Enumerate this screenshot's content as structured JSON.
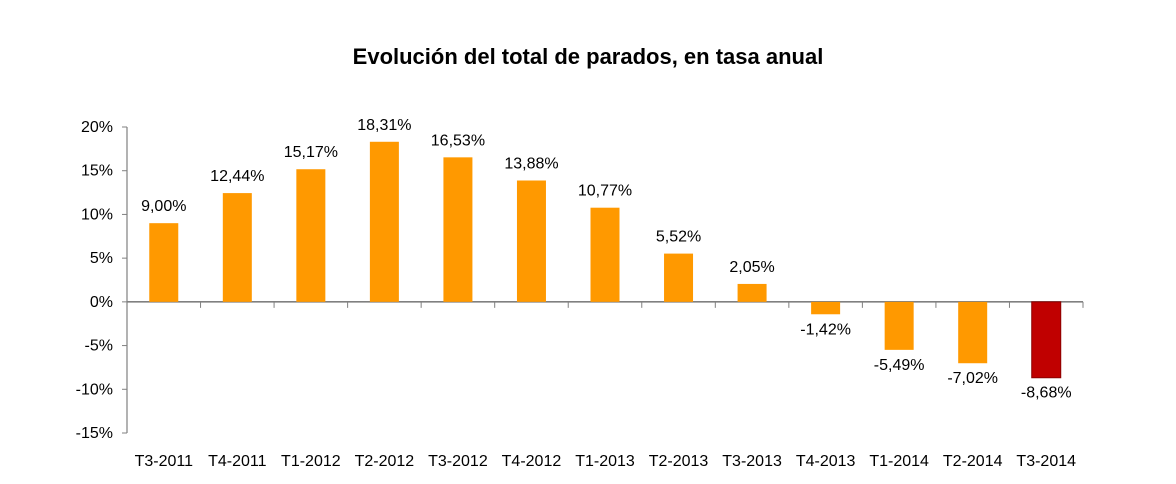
{
  "chart_data": {
    "type": "bar",
    "title": "Evolución del total de parados, en tasa anual",
    "xlabel": "",
    "ylabel": "",
    "ylim": [
      -15,
      20
    ],
    "yticks": [
      20,
      15,
      10,
      5,
      0,
      -5,
      -10,
      -15
    ],
    "ytick_labels": [
      "20%",
      "15%",
      "10%",
      "5%",
      "0%",
      "-5%",
      "-10%",
      "-15%"
    ],
    "categories": [
      "T3-2011",
      "T4-2011",
      "T1-2012",
      "T2-2012",
      "T3-2012",
      "T4-2012",
      "T1-2013",
      "T2-2013",
      "T3-2013",
      "T4-2013",
      "T1-2014",
      "T2-2014",
      "T3-2014"
    ],
    "values": [
      9.0,
      12.44,
      15.17,
      18.31,
      16.53,
      13.88,
      10.77,
      5.52,
      2.05,
      -1.42,
      -5.49,
      -7.02,
      -8.68
    ],
    "data_labels": [
      "9,00%",
      "12,44%",
      "15,17%",
      "18,31%",
      "16,53%",
      "13,88%",
      "10,77%",
      "5,52%",
      "2,05%",
      "-1,42%",
      "-5,49%",
      "-7,02%",
      "-8,68%"
    ],
    "grid": false,
    "colors": {
      "default": "#FF9900",
      "highlight": "#C00000",
      "axis": "#808080"
    },
    "highlight_index": 12
  }
}
